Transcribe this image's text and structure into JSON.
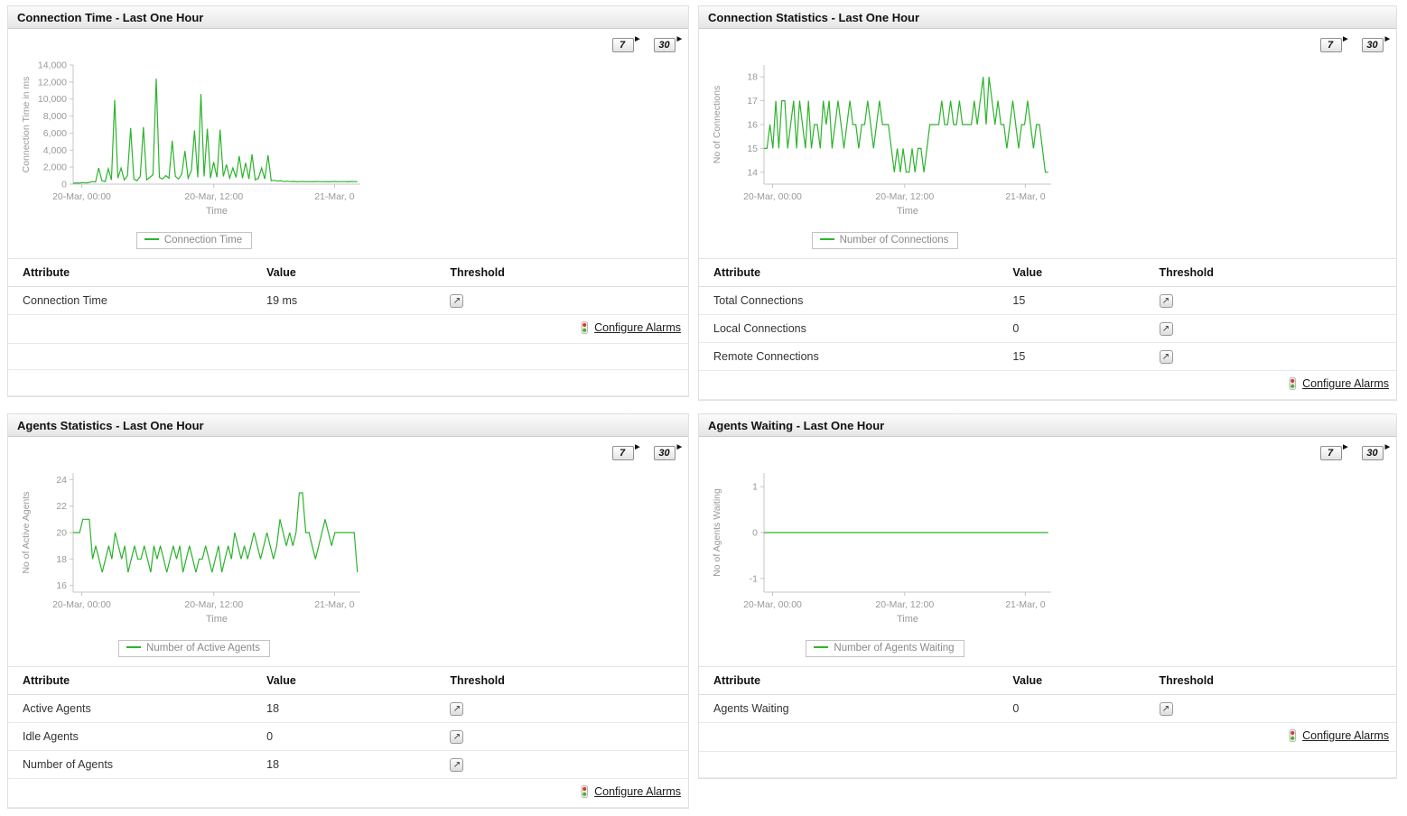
{
  "icons": {
    "expand_arrow": "▶",
    "threshold_glyph": "↗"
  },
  "range_buttons": [
    "7",
    "30"
  ],
  "table_headers": {
    "attribute": "Attribute",
    "value": "Value",
    "threshold": "Threshold"
  },
  "configure_alarms": "Configure Alarms",
  "colors": {
    "line": "#2db32d",
    "axis": "#c4c4c4",
    "tick_label": "#999999"
  },
  "panels": [
    {
      "title": "Connection Time - Last One Hour",
      "table_rows": [
        {
          "attribute": "Connection Time",
          "value": "19 ms"
        }
      ],
      "filler_rows": 2
    },
    {
      "title": "Connection Statistics - Last One Hour",
      "table_rows": [
        {
          "attribute": "Total Connections",
          "value": "15"
        },
        {
          "attribute": "Local Connections",
          "value": "0"
        },
        {
          "attribute": "Remote Connections",
          "value": "15"
        }
      ],
      "filler_rows": 0
    },
    {
      "title": "Agents Statistics - Last One Hour",
      "table_rows": [
        {
          "attribute": "Active Agents",
          "value": "18"
        },
        {
          "attribute": "Idle Agents",
          "value": "0"
        },
        {
          "attribute": "Number of Agents",
          "value": "18"
        }
      ],
      "filler_rows": 0
    },
    {
      "title": "Agents Waiting - Last One Hour",
      "table_rows": [
        {
          "attribute": "Agents Waiting",
          "value": "0"
        }
      ],
      "filler_rows": 1
    }
  ],
  "chart_data": [
    {
      "type": "line",
      "title": "Connection Time - Last One Hour",
      "legend": "Connection Time",
      "ylabel": "Connection Time in ms",
      "xlabel": "Time",
      "ylim": [
        0,
        14000
      ],
      "yticks": [
        {
          "v": 0,
          "label": "0"
        },
        {
          "v": 2000,
          "label": "2,000"
        },
        {
          "v": 4000,
          "label": "4,000"
        },
        {
          "v": 6000,
          "label": "6,000"
        },
        {
          "v": 8000,
          "label": "8,000"
        },
        {
          "v": 10000,
          "label": "10,000"
        },
        {
          "v": 12000,
          "label": "12,000"
        },
        {
          "v": 14000,
          "label": "14,000"
        }
      ],
      "xticks": [
        {
          "pos": 0.03,
          "label": "20-Mar, 00:00"
        },
        {
          "pos": 0.49,
          "label": "20-Mar, 12:00"
        },
        {
          "pos": 0.91,
          "label": "21-Mar, 0"
        }
      ],
      "series": [
        {
          "name": "Connection Time",
          "values": [
            100,
            150,
            120,
            180,
            140,
            200,
            300,
            250,
            1900,
            400,
            300,
            1800,
            500,
            9900,
            700,
            1900,
            500,
            1000,
            6600,
            600,
            400,
            900,
            6700,
            500,
            800,
            1100,
            12400,
            800,
            600,
            1000,
            700,
            5100,
            900,
            600,
            1200,
            3900,
            700,
            1600,
            6300,
            800,
            10600,
            900,
            6500,
            700,
            2600,
            800,
            6400,
            900,
            2300,
            700,
            1900,
            800,
            3300,
            700,
            2500,
            600,
            3500,
            500,
            700,
            1900,
            600,
            3400,
            400,
            450,
            350,
            400,
            300,
            350,
            300,
            320,
            280,
            300,
            310,
            290,
            300,
            280,
            310,
            300,
            290,
            300,
            280,
            300,
            310,
            290,
            300,
            300,
            280,
            310,
            300,
            290
          ]
        }
      ]
    },
    {
      "type": "line",
      "title": "Connection Statistics - Last One Hour",
      "legend": "Number of Connections",
      "ylabel": "No of Connections",
      "xlabel": "Time",
      "ylim": [
        13.5,
        18.5
      ],
      "yticks": [
        {
          "v": 14,
          "label": "14"
        },
        {
          "v": 15,
          "label": "15"
        },
        {
          "v": 16,
          "label": "16"
        },
        {
          "v": 17,
          "label": "17"
        },
        {
          "v": 18,
          "label": "18"
        }
      ],
      "xticks": [
        {
          "pos": 0.03,
          "label": "20-Mar, 00:00"
        },
        {
          "pos": 0.49,
          "label": "20-Mar, 12:00"
        },
        {
          "pos": 0.91,
          "label": "21-Mar, 0"
        }
      ],
      "series": [
        {
          "name": "Number of Connections",
          "values": [
            15,
            15,
            16,
            15,
            17,
            15,
            17,
            17,
            15,
            16,
            17,
            15,
            17,
            16,
            15,
            17,
            15,
            16,
            16,
            15,
            17,
            16,
            17,
            15,
            16,
            17,
            16,
            15,
            16,
            17,
            16,
            16,
            15,
            16,
            16,
            17,
            16,
            15,
            16,
            17,
            16,
            16,
            16,
            15,
            14,
            15,
            14,
            15,
            14,
            14,
            15,
            14,
            15,
            15,
            14,
            15,
            16,
            16,
            16,
            16,
            17,
            16,
            16,
            17,
            16,
            16,
            17,
            16,
            16,
            16,
            16,
            17,
            16,
            17,
            18,
            16,
            18,
            17,
            16,
            17,
            16,
            16,
            15,
            16,
            17,
            16,
            15,
            16,
            16,
            17,
            16,
            15,
            16,
            16,
            15,
            14,
            14
          ]
        }
      ]
    },
    {
      "type": "line",
      "title": "Agents Statistics - Last One Hour",
      "legend": "Number of Active Agents",
      "ylabel": "No of Active Agents",
      "xlabel": "Time",
      "ylim": [
        15.5,
        24.5
      ],
      "yticks": [
        {
          "v": 16,
          "label": "16"
        },
        {
          "v": 18,
          "label": "18"
        },
        {
          "v": 20,
          "label": "20"
        },
        {
          "v": 22,
          "label": "22"
        },
        {
          "v": 24,
          "label": "24"
        }
      ],
      "xticks": [
        {
          "pos": 0.03,
          "label": "20-Mar, 00:00"
        },
        {
          "pos": 0.49,
          "label": "20-Mar, 12:00"
        },
        {
          "pos": 0.91,
          "label": "21-Mar, 0"
        }
      ],
      "series": [
        {
          "name": "Number of Active Agents",
          "values": [
            20,
            20,
            20,
            21,
            21,
            21,
            18,
            19,
            18,
            17,
            18,
            19,
            18,
            20,
            19,
            18,
            19,
            17,
            18,
            19,
            18,
            18,
            19,
            18,
            17,
            19,
            18,
            19,
            18,
            17,
            18,
            19,
            18,
            19,
            17,
            18,
            19,
            18,
            17,
            18,
            18,
            19,
            18,
            17,
            18,
            19,
            17,
            18,
            19,
            18,
            20,
            19,
            18,
            19,
            18,
            19,
            20,
            19,
            18,
            19,
            20,
            19,
            18,
            19,
            21,
            20,
            19,
            20,
            19,
            20,
            23,
            23,
            20,
            20,
            19,
            18,
            19,
            20,
            21,
            20,
            19,
            20,
            20,
            20,
            20,
            20,
            20,
            20,
            17
          ]
        }
      ]
    },
    {
      "type": "line",
      "title": "Agents Waiting - Last One Hour",
      "legend": "Number of Agents Waiting",
      "ylabel": "No of Agents Waiting",
      "xlabel": "Time",
      "ylim": [
        -1.3,
        1.3
      ],
      "yticks": [
        {
          "v": -1,
          "label": "-1"
        },
        {
          "v": 0,
          "label": "0"
        },
        {
          "v": 1,
          "label": "1"
        }
      ],
      "xticks": [
        {
          "pos": 0.03,
          "label": "20-Mar, 00:00"
        },
        {
          "pos": 0.49,
          "label": "20-Mar, 12:00"
        },
        {
          "pos": 0.91,
          "label": "21-Mar, 0"
        }
      ],
      "series": [
        {
          "name": "Number of Agents Waiting",
          "values": [
            0,
            0,
            0,
            0,
            0,
            0,
            0,
            0,
            0,
            0,
            0,
            0,
            0,
            0,
            0,
            0,
            0,
            0,
            0,
            0,
            0,
            0,
            0,
            0,
            0,
            0,
            0,
            0,
            0,
            0,
            0,
            0,
            0,
            0,
            0,
            0,
            0,
            0,
            0,
            0
          ]
        }
      ]
    }
  ]
}
